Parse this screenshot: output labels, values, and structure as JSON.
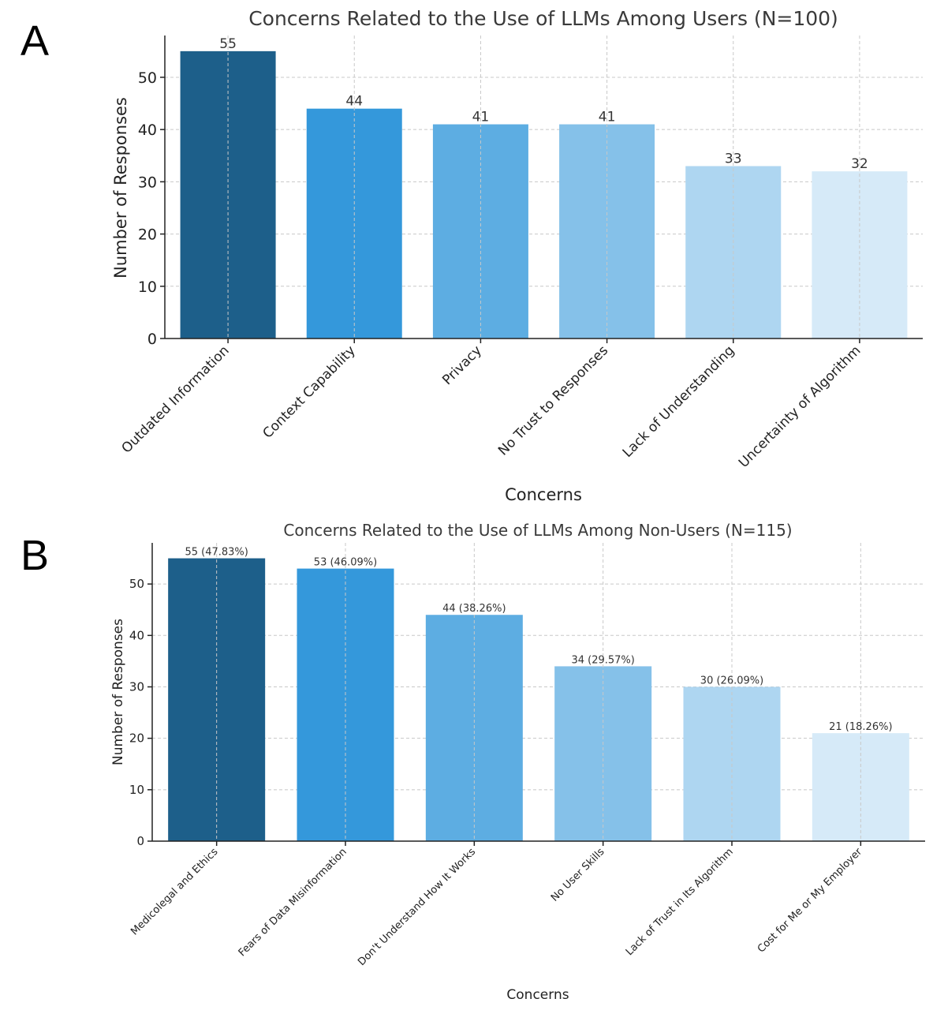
{
  "chart_data": [
    {
      "type": "bar",
      "panel_label": "A",
      "title": "Concerns Related to the Use of LLMs Among Users (N=100)",
      "xlabel": "Concerns",
      "ylabel": "Number of Responses",
      "ylim": [
        0,
        58
      ],
      "yticks": [
        0,
        10,
        20,
        30,
        40,
        50
      ],
      "grid": true,
      "categories": [
        "Outdated Information",
        "Context Capability",
        "Privacy",
        "No Trust to Responses",
        "Lack of Understanding",
        "Uncertainty of Algorithm"
      ],
      "values": [
        55,
        44,
        41,
        41,
        33,
        32
      ],
      "value_labels": [
        "55",
        "44",
        "41",
        "41",
        "33",
        "32"
      ],
      "colors": [
        "#1d5f8a",
        "#3498db",
        "#5dade2",
        "#85c1e9",
        "#aed6f1",
        "#d6eaf8"
      ]
    },
    {
      "type": "bar",
      "panel_label": "B",
      "title": "Concerns Related to the Use of LLMs Among Non-Users (N=115)",
      "xlabel": "Concerns",
      "ylabel": "Number of Responses",
      "ylim": [
        0,
        58
      ],
      "yticks": [
        0,
        10,
        20,
        30,
        40,
        50
      ],
      "grid": true,
      "categories": [
        "Medicolegal and Ethics",
        "Fears of Data Misinformation",
        "Don't Understand How It Works",
        "No User Skills",
        "Lack of Trust in Its Algorithm",
        "Cost for Me or My Employer"
      ],
      "values": [
        55,
        53,
        44,
        34,
        30,
        21
      ],
      "value_labels": [
        "55 (47.83%)",
        "53 (46.09%)",
        "44 (38.26%)",
        "34 (29.57%)",
        "30 (26.09%)",
        "21 (18.26%)"
      ],
      "colors": [
        "#1d5f8a",
        "#3498db",
        "#5dade2",
        "#85c1e9",
        "#aed6f1",
        "#d6eaf8"
      ]
    }
  ]
}
